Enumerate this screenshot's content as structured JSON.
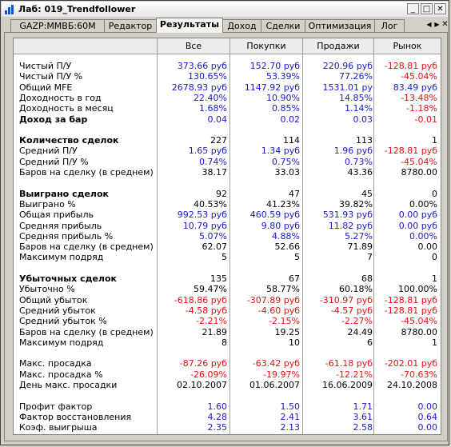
{
  "window": {
    "title": "Лаб: 019_Trendfollower",
    "controls": [
      "_",
      "□",
      "✕"
    ]
  },
  "tabs": [
    {
      "label": "GAZP:MMBБ:60M",
      "active": false
    },
    {
      "label": "Редактор",
      "active": false
    },
    {
      "label": "Результаты",
      "active": true
    },
    {
      "label": "Доход",
      "active": false
    },
    {
      "label": "Сделки",
      "active": false
    },
    {
      "label": "Оптимизация",
      "active": false
    },
    {
      "label": "Лог",
      "active": false
    }
  ],
  "columns": [
    "Все",
    "Покупки",
    "Продажи",
    "Рынок"
  ],
  "colors": {
    "positive": "#1a1acc",
    "negative": "#e81010",
    "neutral": "#000000"
  },
  "rows": [
    {
      "label": "Чистый П/У",
      "values": [
        "373.66 руб",
        "152.70 руб",
        "220.96 руб",
        "-128.81 руб"
      ],
      "colors": [
        "b",
        "b",
        "b",
        "r"
      ]
    },
    {
      "label": "Чистый П/У %",
      "values": [
        "130.65%",
        "53.39%",
        "77.26%",
        "-45.04%"
      ],
      "colors": [
        "b",
        "b",
        "b",
        "r"
      ]
    },
    {
      "label": "Общий MFE",
      "values": [
        "2678.93 руб",
        "1147.92 руб",
        "1531.01 ру",
        "83.49 руб"
      ],
      "colors": [
        "b",
        "b",
        "b",
        "b"
      ]
    },
    {
      "label": "Доходность в год",
      "values": [
        "22.40%",
        "10.90%",
        "14.85%",
        "-13.48%"
      ],
      "colors": [
        "b",
        "b",
        "b",
        "r"
      ]
    },
    {
      "label": "Доходность в месяц",
      "values": [
        "1.68%",
        "0.85%",
        "1.14%",
        "-1.18%"
      ],
      "colors": [
        "b",
        "b",
        "b",
        "r"
      ]
    },
    {
      "label": "Доход за бар",
      "bold": true,
      "values": [
        "0.04",
        "0.02",
        "0.03",
        "-0.01"
      ],
      "colors": [
        "b",
        "b",
        "b",
        "r"
      ]
    },
    {
      "label": "",
      "values": [
        "",
        "",
        "",
        ""
      ],
      "colors": [
        "k",
        "k",
        "k",
        "k"
      ]
    },
    {
      "label": "Количество сделок",
      "bold": true,
      "values": [
        "227",
        "114",
        "113",
        "1"
      ],
      "colors": [
        "k",
        "k",
        "k",
        "k"
      ]
    },
    {
      "label": "Средний П/У",
      "values": [
        "1.65 руб",
        "1.34 руб",
        "1.96 руб",
        "-128.81 руб"
      ],
      "colors": [
        "b",
        "b",
        "b",
        "r"
      ]
    },
    {
      "label": "Средний П/У %",
      "values": [
        "0.74%",
        "0.75%",
        "0.73%",
        "-45.04%"
      ],
      "colors": [
        "b",
        "b",
        "b",
        "r"
      ]
    },
    {
      "label": "Баров на сделку (в среднем)",
      "values": [
        "38.17",
        "33.03",
        "43.36",
        "8780.00"
      ],
      "colors": [
        "k",
        "k",
        "k",
        "k"
      ]
    },
    {
      "label": "",
      "values": [
        "",
        "",
        "",
        ""
      ],
      "colors": [
        "k",
        "k",
        "k",
        "k"
      ]
    },
    {
      "label": "Выиграно сделок",
      "bold": true,
      "values": [
        "92",
        "47",
        "45",
        "0"
      ],
      "colors": [
        "k",
        "k",
        "k",
        "k"
      ]
    },
    {
      "label": "Выиграно %",
      "values": [
        "40.53%",
        "41.23%",
        "39.82%",
        "0.00%"
      ],
      "colors": [
        "k",
        "k",
        "k",
        "k"
      ]
    },
    {
      "label": "Общая прибыль",
      "values": [
        "992.53 руб",
        "460.59 руб",
        "531.93 руб",
        "0.00 руб"
      ],
      "colors": [
        "b",
        "b",
        "b",
        "b"
      ]
    },
    {
      "label": "Средняя прибыль",
      "values": [
        "10.79 руб",
        "9.80 руб",
        "11.82 руб",
        "0.00 руб"
      ],
      "colors": [
        "b",
        "b",
        "b",
        "b"
      ]
    },
    {
      "label": "Средняя прибыль %",
      "values": [
        "5.07%",
        "4.88%",
        "5.27%",
        "0.00%"
      ],
      "colors": [
        "b",
        "b",
        "b",
        "b"
      ]
    },
    {
      "label": "Баров на сделку (в среднем)",
      "values": [
        "62.07",
        "52.66",
        "71.89",
        "0.00"
      ],
      "colors": [
        "k",
        "k",
        "k",
        "k"
      ]
    },
    {
      "label": "Максимум подряд",
      "values": [
        "5",
        "5",
        "7",
        "0"
      ],
      "colors": [
        "k",
        "k",
        "k",
        "k"
      ]
    },
    {
      "label": "",
      "values": [
        "",
        "",
        "",
        ""
      ],
      "colors": [
        "k",
        "k",
        "k",
        "k"
      ]
    },
    {
      "label": "Убыточных сделок",
      "bold": true,
      "values": [
        "135",
        "67",
        "68",
        "1"
      ],
      "colors": [
        "k",
        "k",
        "k",
        "k"
      ]
    },
    {
      "label": "Убыточно %",
      "values": [
        "59.47%",
        "58.77%",
        "60.18%",
        "100.00%"
      ],
      "colors": [
        "k",
        "k",
        "k",
        "k"
      ]
    },
    {
      "label": "Общий убыток",
      "values": [
        "-618.86 руб",
        "-307.89 руб",
        "-310.97 руб",
        "-128.81 руб"
      ],
      "colors": [
        "r",
        "r",
        "r",
        "r"
      ]
    },
    {
      "label": "Средний убыток",
      "values": [
        "-4.58 руб",
        "-4.60 руб",
        "-4.57 руб",
        "-128.81 руб"
      ],
      "colors": [
        "r",
        "r",
        "r",
        "r"
      ]
    },
    {
      "label": "Средний убыток %",
      "values": [
        "-2.21%",
        "-2.15%",
        "-2.27%",
        "-45.04%"
      ],
      "colors": [
        "r",
        "r",
        "r",
        "r"
      ]
    },
    {
      "label": "Баров на сделку (в среднем)",
      "values": [
        "21.89",
        "19.25",
        "24.49",
        "8780.00"
      ],
      "colors": [
        "k",
        "k",
        "k",
        "k"
      ]
    },
    {
      "label": "Максимум подряд",
      "values": [
        "8",
        "10",
        "6",
        "1"
      ],
      "colors": [
        "k",
        "k",
        "k",
        "k"
      ]
    },
    {
      "label": "",
      "values": [
        "",
        "",
        "",
        ""
      ],
      "colors": [
        "k",
        "k",
        "k",
        "k"
      ]
    },
    {
      "label": "Макс. просадка",
      "values": [
        "-87.26 руб",
        "-63.42 руб",
        "-61.18 руб",
        "-202.01 руб"
      ],
      "colors": [
        "r",
        "r",
        "r",
        "r"
      ]
    },
    {
      "label": "Макс. просадка %",
      "values": [
        "-26.09%",
        "-19.97%",
        "-12.21%",
        "-70.63%"
      ],
      "colors": [
        "r",
        "r",
        "r",
        "r"
      ]
    },
    {
      "label": "День макс. просадки",
      "values": [
        "02.10.2007",
        "01.06.2007",
        "16.06.2009",
        "24.10.2008"
      ],
      "colors": [
        "k",
        "k",
        "k",
        "k"
      ]
    },
    {
      "label": "",
      "values": [
        "",
        "",
        "",
        ""
      ],
      "colors": [
        "k",
        "k",
        "k",
        "k"
      ]
    },
    {
      "label": "Профит фактор",
      "values": [
        "1.60",
        "1.50",
        "1.71",
        "0.00"
      ],
      "colors": [
        "b",
        "b",
        "b",
        "b"
      ]
    },
    {
      "label": "Фактор восстановления",
      "values": [
        "4.28",
        "2.41",
        "3.61",
        "0.64"
      ],
      "colors": [
        "b",
        "b",
        "b",
        "b"
      ]
    },
    {
      "label": "Коэф. выигрыша",
      "values": [
        "2.35",
        "2.13",
        "2.58",
        "0.00"
      ],
      "colors": [
        "b",
        "b",
        "b",
        "b"
      ]
    }
  ]
}
